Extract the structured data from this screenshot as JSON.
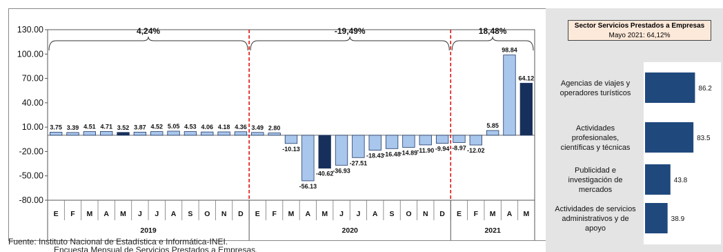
{
  "main_chart": {
    "type": "bar",
    "y_ticks": [
      "130.00",
      "100.00",
      "70.00",
      "40.00",
      "10.00",
      "-20.00",
      "-50.00",
      "-80.00"
    ],
    "ylim": [
      -80,
      130
    ],
    "months": [
      "E",
      "F",
      "M",
      "A",
      "M",
      "J",
      "J",
      "A",
      "S",
      "O",
      "N",
      "D",
      "E",
      "F",
      "M",
      "A",
      "M",
      "J",
      "J",
      "A",
      "S",
      "O",
      "N",
      "D",
      "E",
      "F",
      "M",
      "A",
      "M"
    ],
    "values": [
      3.75,
      3.39,
      4.51,
      4.71,
      3.52,
      3.87,
      4.52,
      5.05,
      4.53,
      4.06,
      4.18,
      4.36,
      3.49,
      2.8,
      -10.13,
      -56.13,
      -40.62,
      -36.93,
      -27.51,
      -18.43,
      -16.48,
      -14.89,
      -11.9,
      -9.94,
      -8.97,
      -12.02,
      5.85,
      98.84,
      64.12
    ],
    "value_labels": [
      "3.75",
      "3.39",
      "4.51",
      "4.71",
      "3.52",
      "3.87",
      "4.52",
      "5.05",
      "4.53",
      "4.06",
      "4.18",
      "4.36",
      "3.49",
      "2.80",
      "-10.13",
      "-56.13",
      "-40.62",
      "-36.93",
      "-27.51",
      "-18.43",
      "-16.48",
      "-14.89",
      "-11.90",
      "-9.94",
      "-8.97",
      "-12.02",
      "5.85",
      "98.84",
      "64.12"
    ],
    "highlighted": [
      4,
      16,
      28
    ],
    "years": [
      {
        "label": "2019",
        "start": 0,
        "end": 11,
        "annotation": "4,24%"
      },
      {
        "label": "2020",
        "start": 12,
        "end": 23,
        "annotation": "-19,49%"
      },
      {
        "label": "2021",
        "start": 24,
        "end": 28,
        "annotation": "18,48%"
      }
    ],
    "colors": {
      "bar": "#a9c6ec",
      "highlight": "#17305b",
      "bar_edge": "#1f3864",
      "divider": "#e00000"
    }
  },
  "right_chart": {
    "type": "bar",
    "title": "Sector Servicios Prestados a  Empresas",
    "subtitle": "Mayo 2021: 64,12%",
    "categories": [
      [
        "Agencias de viajes y",
        "operadores turísticos"
      ],
      [
        "Actividades",
        "profesionales,",
        "científicas y técnicas"
      ],
      [
        "Publicidad e",
        "investigación de",
        "mercados"
      ],
      [
        "Actividades de servicios",
        "administrativos y de",
        "apoyo"
      ]
    ],
    "values": [
      86.2,
      83.5,
      43.8,
      38.9
    ],
    "value_labels": [
      "86.2",
      "83.5",
      "43.8",
      "38.9"
    ],
    "colors": {
      "bar": "#1f497d"
    }
  },
  "footer": {
    "line1": "Fuente: Instituto Nacional de Estadística e Informática-INEI.",
    "line2": "Encuesta Mensual de Servicios Prestados a Empresas."
  }
}
